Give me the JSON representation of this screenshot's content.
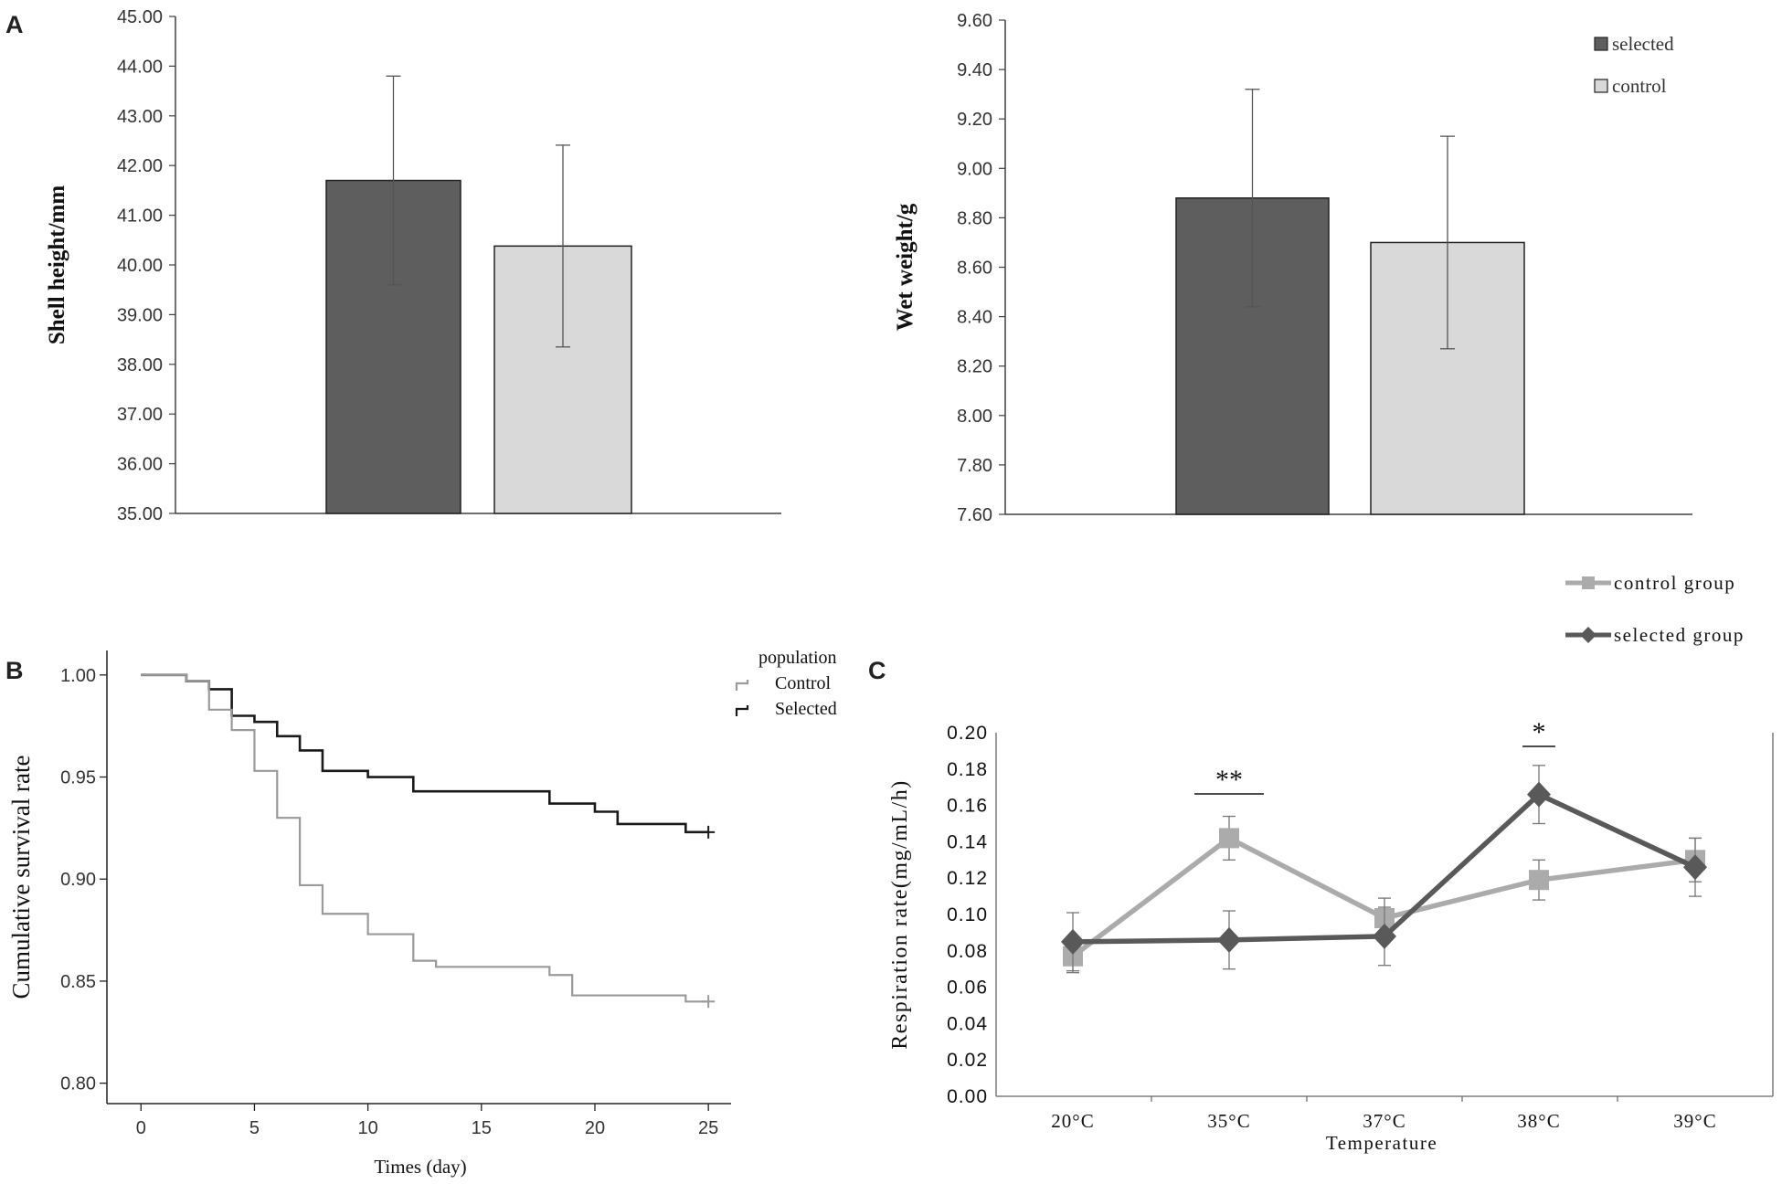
{
  "colors": {
    "selected_bar": "#5e5e5e",
    "control_bar": "#d9d9d9",
    "selected_line": "#595959",
    "control_line": "#ababab",
    "km_selected": "#1a1a1a",
    "km_control": "#9a9a9a",
    "axis": "#404040",
    "text": "#333333"
  },
  "panel_labels": {
    "a": "A",
    "b": "B",
    "c": "C"
  },
  "chart_data": [
    {
      "id": "A-left",
      "type": "bar",
      "title": "",
      "ylabel": "Shell height/mm",
      "xlabel": "",
      "ylim": [
        35,
        45
      ],
      "yticks": [
        "35.00",
        "36.00",
        "37.00",
        "38.00",
        "39.00",
        "40.00",
        "41.00",
        "42.00",
        "43.00",
        "44.00",
        "45.00"
      ],
      "categories": [
        "selected",
        "control"
      ],
      "values": [
        41.7,
        40.38
      ],
      "errors": [
        2.1,
        2.03
      ]
    },
    {
      "id": "A-right",
      "type": "bar",
      "title": "",
      "ylabel": "Wet weight/g",
      "xlabel": "",
      "ylim": [
        7.6,
        9.6
      ],
      "yticks": [
        "7.60",
        "7.80",
        "8.00",
        "8.20",
        "8.40",
        "8.60",
        "8.80",
        "9.00",
        "9.20",
        "9.40",
        "9.60"
      ],
      "categories": [
        "selected",
        "control"
      ],
      "values": [
        8.88,
        8.7
      ],
      "errors": [
        0.44,
        0.43
      ],
      "legend": {
        "placement": "top-right",
        "entries": [
          "selected",
          "control"
        ]
      }
    },
    {
      "id": "B",
      "type": "line",
      "title": "",
      "ylabel": "Cumulative survival rate",
      "xlabel": "Times  (day)",
      "xlim": [
        -1.5,
        26
      ],
      "ylim": [
        0.79,
        1.012
      ],
      "xticks": [
        "0",
        "5",
        "10",
        "15",
        "20",
        "25"
      ],
      "yticks": [
        "0.80",
        "0.85",
        "0.90",
        "0.95",
        "1.00"
      ],
      "legend": {
        "placement": "top-right",
        "title": "population",
        "entries": [
          "Control",
          "Selected"
        ]
      },
      "series": [
        {
          "name": "Selected",
          "steps": [
            [
              0,
              1.0
            ],
            [
              2,
              0.997
            ],
            [
              3,
              0.993
            ],
            [
              4,
              0.98
            ],
            [
              5,
              0.977
            ],
            [
              6,
              0.97
            ],
            [
              7,
              0.963
            ],
            [
              8,
              0.953
            ],
            [
              10,
              0.95
            ],
            [
              12,
              0.943
            ],
            [
              18,
              0.937
            ],
            [
              20,
              0.933
            ],
            [
              21,
              0.927
            ],
            [
              24,
              0.923
            ],
            [
              25,
              0.923
            ]
          ],
          "censor": [
            25,
            0.923
          ]
        },
        {
          "name": "Control",
          "steps": [
            [
              0,
              1.0
            ],
            [
              2,
              0.997
            ],
            [
              3,
              0.983
            ],
            [
              4,
              0.973
            ],
            [
              5,
              0.953
            ],
            [
              6,
              0.93
            ],
            [
              7,
              0.897
            ],
            [
              8,
              0.883
            ],
            [
              10,
              0.873
            ],
            [
              12,
              0.86
            ],
            [
              13,
              0.857
            ],
            [
              18,
              0.853
            ],
            [
              19,
              0.843
            ],
            [
              24,
              0.84
            ],
            [
              25,
              0.84
            ]
          ],
          "censor": [
            25,
            0.84
          ]
        }
      ]
    },
    {
      "id": "C",
      "type": "line",
      "title": "",
      "ylabel": "Respiration rate(mg/mL/h)",
      "xlabel": "Temperature",
      "ylim": [
        0,
        0.2
      ],
      "yticks": [
        "0.00",
        "0.02",
        "0.04",
        "0.06",
        "0.08",
        "0.10",
        "0.12",
        "0.14",
        "0.16",
        "0.18",
        "0.20"
      ],
      "categories": [
        "20°C",
        "35°C",
        "37°C",
        "38°C",
        "39°C"
      ],
      "legend": {
        "placement": "top-right",
        "entries": [
          "control group",
          "selected group"
        ]
      },
      "series": [
        {
          "name": "control group",
          "values": [
            0.077,
            0.142,
            0.098,
            0.119,
            0.13
          ],
          "errors": [
            0.009,
            0.012,
            0.011,
            0.011,
            0.012
          ]
        },
        {
          "name": "selected group",
          "values": [
            0.085,
            0.086,
            0.088,
            0.166,
            0.126
          ],
          "errors": [
            0.016,
            0.016,
            0.016,
            0.016,
            0.016
          ]
        }
      ],
      "annotations": [
        {
          "category": "35°C",
          "text": "**"
        },
        {
          "category": "38°C",
          "text": "*"
        }
      ]
    }
  ]
}
